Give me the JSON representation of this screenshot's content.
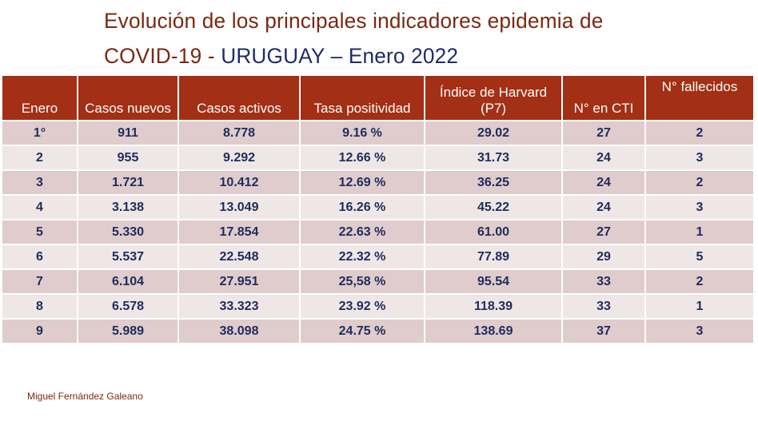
{
  "title": {
    "line1": "Evolución de los principales indicadores epidemia de",
    "line2_a": "COVID-19 - ",
    "line2_b": "URUGUAY",
    "line2_c": " – Enero 2022"
  },
  "table": {
    "headers": [
      "Enero",
      "Casos nuevos",
      "Casos activos",
      "Tasa positividad",
      "Índice de Harvard (P7)",
      "N° en CTI",
      "N° fallecidos"
    ],
    "rows": [
      [
        "1°",
        "911",
        "8.778",
        "9.16 %",
        "29.02",
        "27",
        "2"
      ],
      [
        "2",
        "955",
        "9.292",
        "12.66 %",
        "31.73",
        "24",
        "3"
      ],
      [
        "3",
        "1.721",
        "10.412",
        "12.69 %",
        "36.25",
        "24",
        "2"
      ],
      [
        "4",
        "3.138",
        "13.049",
        "16.26 %",
        "45.22",
        "24",
        "3"
      ],
      [
        "5",
        "5.330",
        "17.854",
        "22.63 %",
        "61.00",
        "27",
        "1"
      ],
      [
        "6",
        "5.537",
        "22.548",
        "22.32 %",
        "77.89",
        "29",
        "5"
      ],
      [
        "7",
        "6.104",
        "27.951",
        "25,58 %",
        "95.54",
        "33",
        "2"
      ],
      [
        "8",
        "6.578",
        "33.323",
        "23.92 %",
        "118.39",
        "33",
        "1"
      ],
      [
        "9",
        "5.989",
        "38.098",
        "24.75 %",
        "138.69",
        "37",
        "3"
      ]
    ]
  },
  "author": "Miguel Fernández Galeano",
  "colors": {
    "header": "#a32f14",
    "title": "#7a2812",
    "accent": "#1d2c6a"
  }
}
